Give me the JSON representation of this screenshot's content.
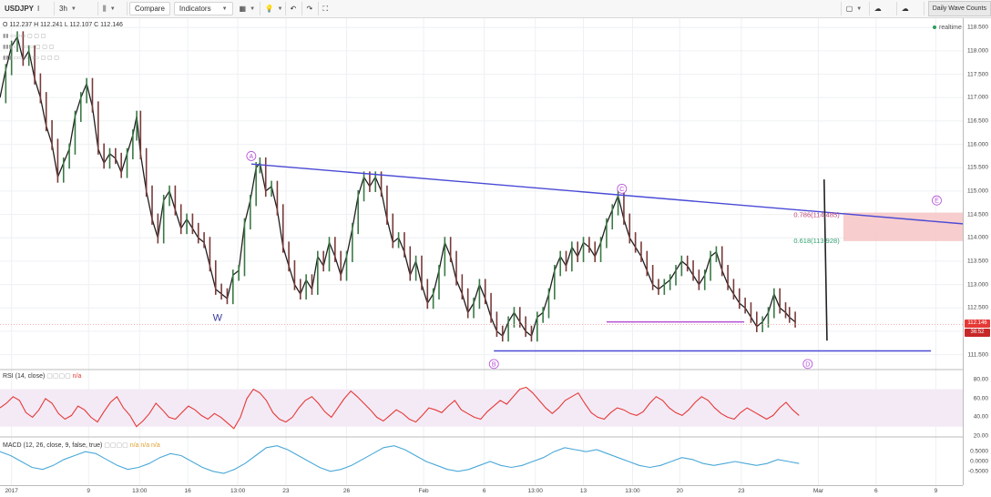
{
  "toolbar": {
    "symbol": "USDJPY",
    "interval": "3h",
    "compare_label": "Compare",
    "indicators_label": "Indicators",
    "layout_name": "Daily Wave Counts"
  },
  "ohlc_text": "O 112.237  H 112.241  L 112.107  C 112.146",
  "realtime_label": "realtime",
  "price_tags": {
    "last": "112.146",
    "countdown": "36:52"
  },
  "colors": {
    "price_line": "#1f1f1f",
    "trend": "#4a4ad6",
    "bar_up": "#3a7a45",
    "bar_down": "#7a3a3a",
    "magenta": "#b44bd6",
    "rsi": "#e53935",
    "macd": "#4aa8d8",
    "red_zone": "#f7c8c8"
  },
  "chart_data": [
    {
      "type": "candlestick",
      "price_axis": {
        "min": 111.2,
        "max": 118.7,
        "ticks": [
          111.5,
          112.0,
          112.5,
          113.0,
          113.5,
          114.0,
          114.5,
          115.0,
          115.5,
          116.0,
          116.5,
          117.0,
          117.5,
          118.0,
          118.5
        ]
      },
      "x_ticks": [
        {
          "label": "2017",
          "pos": 0.012
        },
        {
          "label": "9",
          "pos": 0.092
        },
        {
          "label": "13:00",
          "pos": 0.145
        },
        {
          "label": "16",
          "pos": 0.195
        },
        {
          "label": "13:00",
          "pos": 0.247
        },
        {
          "label": "23",
          "pos": 0.297
        },
        {
          "label": "26",
          "pos": 0.36
        },
        {
          "label": "Feb",
          "pos": 0.44
        },
        {
          "label": "6",
          "pos": 0.503
        },
        {
          "label": "13:00",
          "pos": 0.556
        },
        {
          "label": "13",
          "pos": 0.606
        },
        {
          "label": "13:00",
          "pos": 0.657
        },
        {
          "label": "20",
          "pos": 0.706
        },
        {
          "label": "23",
          "pos": 0.77
        },
        {
          "label": "Mar",
          "pos": 0.85
        },
        {
          "label": "6",
          "pos": 0.91
        },
        {
          "label": "9",
          "pos": 0.972
        }
      ],
      "price_series": [
        [
          0.0,
          117.0
        ],
        [
          0.006,
          117.6
        ],
        [
          0.012,
          118.1
        ],
        [
          0.018,
          118.3
        ],
        [
          0.024,
          117.8
        ],
        [
          0.03,
          118.0
        ],
        [
          0.036,
          117.4
        ],
        [
          0.042,
          117.0
        ],
        [
          0.048,
          116.4
        ],
        [
          0.054,
          116.0
        ],
        [
          0.06,
          115.3
        ],
        [
          0.066,
          115.6
        ],
        [
          0.072,
          115.9
        ],
        [
          0.078,
          116.6
        ],
        [
          0.084,
          117.0
        ],
        [
          0.09,
          117.3
        ],
        [
          0.096,
          116.8
        ],
        [
          0.102,
          115.9
        ],
        [
          0.108,
          115.6
        ],
        [
          0.114,
          115.8
        ],
        [
          0.12,
          115.7
        ],
        [
          0.126,
          115.4
        ],
        [
          0.132,
          115.8
        ],
        [
          0.138,
          116.2
        ],
        [
          0.142,
          116.6
        ],
        [
          0.146,
          115.8
        ],
        [
          0.152,
          115.0
        ],
        [
          0.158,
          114.4
        ],
        [
          0.164,
          114.0
        ],
        [
          0.17,
          114.8
        ],
        [
          0.176,
          115.0
        ],
        [
          0.182,
          114.6
        ],
        [
          0.188,
          114.2
        ],
        [
          0.194,
          114.4
        ],
        [
          0.2,
          114.2
        ],
        [
          0.206,
          114.0
        ],
        [
          0.212,
          113.9
        ],
        [
          0.218,
          113.4
        ],
        [
          0.224,
          112.9
        ],
        [
          0.23,
          112.8
        ],
        [
          0.236,
          112.7
        ],
        [
          0.242,
          113.2
        ],
        [
          0.248,
          113.3
        ],
        [
          0.254,
          114.3
        ],
        [
          0.26,
          114.8
        ],
        [
          0.266,
          115.5
        ],
        [
          0.27,
          115.6
        ],
        [
          0.276,
          115.0
        ],
        [
          0.282,
          115.1
        ],
        [
          0.288,
          114.6
        ],
        [
          0.294,
          113.8
        ],
        [
          0.3,
          113.4
        ],
        [
          0.306,
          113.0
        ],
        [
          0.312,
          112.8
        ],
        [
          0.318,
          113.1
        ],
        [
          0.324,
          112.9
        ],
        [
          0.33,
          113.6
        ],
        [
          0.336,
          113.4
        ],
        [
          0.342,
          113.9
        ],
        [
          0.348,
          113.6
        ],
        [
          0.354,
          113.2
        ],
        [
          0.36,
          113.6
        ],
        [
          0.366,
          114.2
        ],
        [
          0.372,
          114.9
        ],
        [
          0.378,
          115.3
        ],
        [
          0.384,
          115.1
        ],
        [
          0.39,
          115.3
        ],
        [
          0.396,
          115.0
        ],
        [
          0.402,
          114.4
        ],
        [
          0.408,
          113.9
        ],
        [
          0.414,
          114.0
        ],
        [
          0.42,
          113.7
        ],
        [
          0.426,
          113.2
        ],
        [
          0.432,
          113.5
        ],
        [
          0.438,
          113.0
        ],
        [
          0.444,
          112.6
        ],
        [
          0.45,
          112.8
        ],
        [
          0.456,
          113.3
        ],
        [
          0.462,
          113.9
        ],
        [
          0.468,
          113.6
        ],
        [
          0.474,
          113.1
        ],
        [
          0.48,
          112.8
        ],
        [
          0.486,
          112.4
        ],
        [
          0.492,
          112.6
        ],
        [
          0.498,
          113.0
        ],
        [
          0.504,
          112.7
        ],
        [
          0.51,
          112.3
        ],
        [
          0.516,
          112.0
        ],
        [
          0.522,
          111.9
        ],
        [
          0.528,
          112.2
        ],
        [
          0.534,
          112.4
        ],
        [
          0.54,
          112.2
        ],
        [
          0.546,
          112.0
        ],
        [
          0.552,
          111.9
        ],
        [
          0.558,
          112.3
        ],
        [
          0.564,
          112.4
        ],
        [
          0.57,
          112.8
        ],
        [
          0.576,
          113.3
        ],
        [
          0.582,
          113.6
        ],
        [
          0.588,
          113.4
        ],
        [
          0.594,
          113.8
        ],
        [
          0.6,
          113.6
        ],
        [
          0.606,
          113.9
        ],
        [
          0.612,
          113.8
        ],
        [
          0.618,
          113.6
        ],
        [
          0.624,
          113.9
        ],
        [
          0.63,
          114.3
        ],
        [
          0.636,
          114.6
        ],
        [
          0.642,
          114.9
        ],
        [
          0.648,
          114.4
        ],
        [
          0.654,
          114.0
        ],
        [
          0.66,
          113.8
        ],
        [
          0.666,
          113.6
        ],
        [
          0.672,
          113.3
        ],
        [
          0.678,
          113.0
        ],
        [
          0.684,
          112.9
        ],
        [
          0.69,
          113.0
        ],
        [
          0.696,
          113.1
        ],
        [
          0.702,
          113.3
        ],
        [
          0.708,
          113.5
        ],
        [
          0.714,
          113.4
        ],
        [
          0.72,
          113.2
        ],
        [
          0.726,
          113.0
        ],
        [
          0.732,
          113.2
        ],
        [
          0.738,
          113.6
        ],
        [
          0.744,
          113.7
        ],
        [
          0.75,
          113.3
        ],
        [
          0.756,
          113.0
        ],
        [
          0.762,
          112.8
        ],
        [
          0.768,
          112.6
        ],
        [
          0.774,
          112.5
        ],
        [
          0.78,
          112.3
        ],
        [
          0.786,
          112.1
        ],
        [
          0.792,
          112.2
        ],
        [
          0.798,
          112.4
        ],
        [
          0.804,
          112.8
        ],
        [
          0.81,
          112.5
        ],
        [
          0.816,
          112.4
        ],
        [
          0.82,
          112.3
        ],
        [
          0.826,
          112.2
        ]
      ],
      "fib_levels": [
        {
          "label": "0.786(114.485)",
          "value": 114.485,
          "color": "#c0457a"
        },
        {
          "label": "0.618(113.928)",
          "value": 113.928,
          "color": "#2f9e6e"
        }
      ],
      "wave_labels": [
        {
          "label": "A",
          "x": 0.261,
          "y": 115.75
        },
        {
          "label": "B",
          "x": 0.513,
          "y": 111.3
        },
        {
          "label": "C",
          "x": 0.646,
          "y": 115.05
        },
        {
          "label": "D",
          "x": 0.839,
          "y": 111.3
        },
        {
          "label": "E",
          "x": 0.973,
          "y": 114.8
        },
        {
          "label": "W",
          "x": 0.226,
          "y": 112.3
        }
      ]
    },
    {
      "type": "line",
      "title": "RSI (14, close)",
      "value_label": "n/a",
      "ylim": [
        20,
        90
      ],
      "ticks": [
        80,
        60,
        40,
        20
      ],
      "band": [
        30,
        70
      ],
      "values": [
        50,
        55,
        62,
        58,
        45,
        40,
        48,
        60,
        55,
        44,
        38,
        42,
        52,
        48,
        40,
        35,
        46,
        56,
        62,
        50,
        42,
        30,
        36,
        44,
        55,
        48,
        40,
        38,
        45,
        52,
        48,
        42,
        38,
        44,
        40,
        34,
        28,
        40,
        60,
        70,
        66,
        58,
        45,
        38,
        35,
        40,
        50,
        58,
        62,
        55,
        46,
        40,
        50,
        60,
        68,
        62,
        55,
        48,
        40,
        36,
        42,
        48,
        44,
        38,
        35,
        42,
        50,
        48,
        45,
        52,
        58,
        48,
        44,
        40,
        38,
        46,
        52,
        58,
        54,
        62,
        70,
        72,
        66,
        58,
        50,
        44,
        50,
        58,
        62,
        66,
        55,
        45,
        40,
        38,
        45,
        50,
        48,
        44,
        42,
        46,
        55,
        62,
        58,
        50,
        45,
        42,
        48,
        56,
        62,
        58,
        50,
        44,
        40,
        38,
        45,
        50,
        46,
        42,
        38,
        42,
        50,
        56,
        48,
        42
      ]
    },
    {
      "type": "line",
      "title": "MACD (12, 26, close, 9, false, true)",
      "value_label": "n/a  n/a  n/a",
      "ylim": [
        -1.2,
        1.2
      ],
      "ticks": [
        0.5,
        0,
        -0.5
      ],
      "values": [
        0.5,
        0.3,
        0.0,
        -0.3,
        -0.4,
        -0.2,
        0.1,
        0.3,
        0.5,
        0.4,
        0.1,
        -0.2,
        -0.4,
        -0.3,
        -0.1,
        0.2,
        0.4,
        0.3,
        0.0,
        -0.3,
        -0.5,
        -0.6,
        -0.4,
        -0.1,
        0.3,
        0.7,
        0.8,
        0.6,
        0.3,
        0.0,
        -0.3,
        -0.5,
        -0.4,
        -0.2,
        0.1,
        0.4,
        0.7,
        0.8,
        0.6,
        0.3,
        0.0,
        -0.2,
        -0.4,
        -0.5,
        -0.4,
        -0.2,
        0.0,
        -0.2,
        -0.3,
        -0.2,
        0.0,
        0.2,
        0.5,
        0.7,
        0.6,
        0.5,
        0.6,
        0.4,
        0.2,
        0.0,
        -0.2,
        -0.3,
        -0.2,
        0.0,
        0.2,
        0.1,
        -0.1,
        -0.2,
        -0.1,
        0.0,
        -0.1,
        -0.2,
        -0.1,
        0.1,
        0.0,
        -0.1
      ]
    }
  ]
}
